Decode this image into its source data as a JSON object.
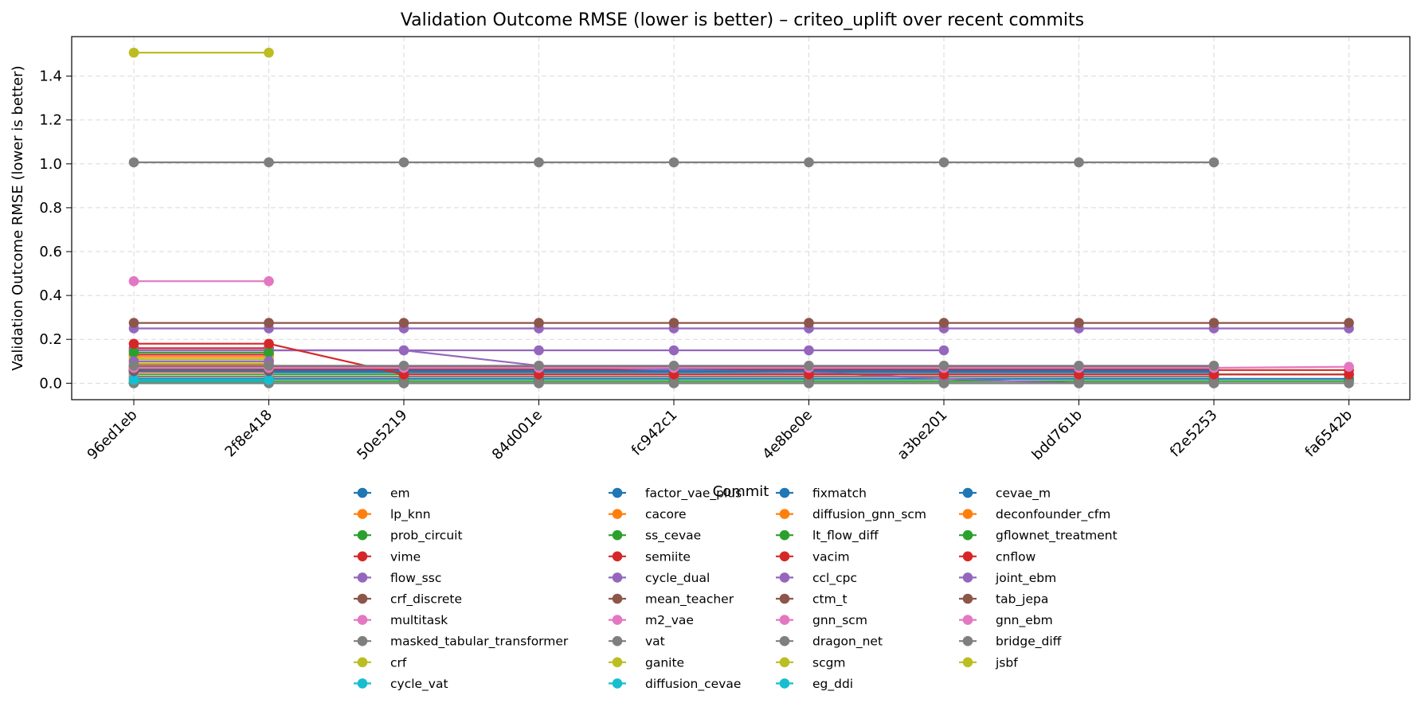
{
  "chart_data": {
    "type": "line",
    "title": "Validation Outcome RMSE (lower is better) – criteo_uplift over recent commits",
    "xlabel": "Commit",
    "ylabel": "Validation Outcome RMSE (lower is better)",
    "categories": [
      "96ed1eb",
      "2f8e418",
      "50e5219",
      "84d001e",
      "fc942c1",
      "4e8be0e",
      "a3be201",
      "bdd761b",
      "f2e5253",
      "fa6542b"
    ],
    "ylim": [
      -0.075,
      1.58
    ],
    "yticks": [
      "0.0",
      "0.2",
      "0.4",
      "0.6",
      "0.8",
      "1.0",
      "1.2",
      "1.4"
    ],
    "grid": true,
    "legend_position": "below",
    "palette": [
      "#1f77b4",
      "#ff7f0e",
      "#2ca02c",
      "#d62728",
      "#9467bd",
      "#8c564b",
      "#e377c2",
      "#7f7f7f",
      "#bcbd22",
      "#17becf"
    ],
    "series": [
      {
        "name": "em",
        "values": [
          0.05,
          0.05,
          0.05,
          0.05,
          0.05,
          0.05,
          0.05,
          0.05,
          0.05,
          null
        ]
      },
      {
        "name": "lp_knn",
        "values": [
          0.06,
          0.06,
          null,
          null,
          null,
          null,
          null,
          null,
          null,
          null
        ]
      },
      {
        "name": "prob_circuit",
        "values": [
          0.04,
          0.04,
          0.04,
          0.04,
          0.04,
          0.04,
          0.04,
          0.04,
          0.04,
          0.04
        ]
      },
      {
        "name": "vime",
        "values": [
          0.16,
          0.16,
          null,
          null,
          null,
          null,
          null,
          null,
          null,
          null
        ]
      },
      {
        "name": "flow_ssc",
        "values": [
          0.15,
          0.15,
          0.15,
          0.15,
          0.15,
          0.15,
          0.15,
          null,
          null,
          null
        ]
      },
      {
        "name": "crf_discrete",
        "values": [
          0.07,
          0.07,
          0.07,
          0.07,
          0.07,
          0.07,
          0.07,
          0.07,
          0.07,
          null
        ]
      },
      {
        "name": "multitask",
        "values": [
          0.465,
          0.465,
          null,
          null,
          null,
          null,
          null,
          null,
          null,
          null
        ]
      },
      {
        "name": "masked_tabular_transformer",
        "values": [
          1.007,
          1.007,
          1.007,
          1.007,
          1.007,
          1.007,
          1.007,
          1.007,
          1.007,
          null
        ]
      },
      {
        "name": "crf",
        "values": [
          0.09,
          0.09,
          null,
          null,
          null,
          null,
          null,
          null,
          null,
          null
        ]
      },
      {
        "name": "cycle_vat",
        "values": [
          0.1,
          0.1,
          null,
          null,
          null,
          null,
          null,
          null,
          null,
          null
        ]
      },
      {
        "name": "factor_vae_plus",
        "values": [
          0.02,
          0.02,
          0.02,
          0.02,
          0.02,
          0.02,
          0.02,
          0.02,
          0.02,
          0.02
        ]
      },
      {
        "name": "cacore",
        "values": [
          0.08,
          0.08,
          null,
          null,
          null,
          null,
          null,
          null,
          null,
          null
        ]
      },
      {
        "name": "ss_cevae",
        "values": [
          0.01,
          0.01,
          0.01,
          0.01,
          0.01,
          0.01,
          0.01,
          0.01,
          0.01,
          0.01
        ]
      },
      {
        "name": "semiite",
        "values": [
          0.13,
          0.13,
          null,
          null,
          null,
          null,
          null,
          null,
          null,
          null
        ]
      },
      {
        "name": "cycle_dual",
        "values": [
          0.25,
          0.25,
          0.25,
          0.25,
          0.25,
          0.25,
          0.25,
          0.25,
          0.25,
          0.25
        ]
      },
      {
        "name": "mean_teacher",
        "values": [
          0.275,
          0.275,
          0.275,
          0.275,
          0.275,
          0.275,
          0.275,
          0.275,
          0.275,
          0.275
        ]
      },
      {
        "name": "m2_vae",
        "values": [
          0.07,
          0.07,
          null,
          null,
          null,
          null,
          null,
          null,
          null,
          null
        ]
      },
      {
        "name": "vat",
        "values": [
          0.03,
          0.03,
          0.03,
          0.03,
          0.03,
          0.03,
          0.03,
          0.03,
          0.03,
          null
        ]
      },
      {
        "name": "ganite",
        "values": [
          0.045,
          0.045,
          null,
          null,
          null,
          null,
          null,
          null,
          null,
          null
        ]
      },
      {
        "name": "diffusion_cevae",
        "values": [
          0.005,
          0.005,
          null,
          null,
          null,
          null,
          null,
          null,
          null,
          null
        ]
      },
      {
        "name": "fixmatch",
        "values": [
          0.065,
          0.065,
          0.065,
          0.065,
          0.065,
          0.065,
          0.065,
          0.065,
          0.065,
          null
        ]
      },
      {
        "name": "diffusion_gnn_scm",
        "values": [
          0.12,
          0.12,
          null,
          null,
          null,
          null,
          null,
          null,
          null,
          null
        ]
      },
      {
        "name": "lt_flow_diff",
        "values": [
          0.0,
          0.0,
          0.0,
          0.0,
          0.0,
          0.0,
          0.0,
          0.0,
          0.0,
          null
        ]
      },
      {
        "name": "vacim",
        "values": [
          0.06,
          0.06,
          0.06,
          0.06,
          0.06,
          0.06,
          0.06,
          0.06,
          0.06,
          0.06
        ]
      },
      {
        "name": "ccl_cpc",
        "values": [
          0.15,
          0.15,
          0.15,
          0.08,
          0.06,
          0.05,
          0.02,
          0.0,
          0.0,
          null
        ]
      },
      {
        "name": "ctm_t",
        "values": [
          0.075,
          0.075,
          0.075,
          0.075,
          0.075,
          0.075,
          0.075,
          0.075,
          0.075,
          null
        ]
      },
      {
        "name": "gnn_scm",
        "values": [
          0.05,
          0.05,
          null,
          null,
          null,
          null,
          null,
          null,
          null,
          null
        ]
      },
      {
        "name": "dragon_net",
        "values": [
          0.0,
          0.0,
          0.0,
          0.0,
          0.0,
          0.0,
          0.0,
          0.0,
          0.0,
          0.0
        ]
      },
      {
        "name": "scgm",
        "values": [
          0.11,
          0.11,
          null,
          null,
          null,
          null,
          null,
          null,
          null,
          null
        ]
      },
      {
        "name": "eg_ddi",
        "values": [
          0.015,
          0.015,
          null,
          null,
          null,
          null,
          null,
          null,
          null,
          null
        ]
      },
      {
        "name": "cevae_m",
        "values": [
          0.055,
          0.055,
          0.055,
          0.055,
          0.055,
          0.055,
          0.055,
          0.055,
          0.055,
          null
        ]
      },
      {
        "name": "deconfounder_cfm",
        "values": [
          0.085,
          0.085,
          null,
          null,
          null,
          null,
          null,
          null,
          null,
          null
        ]
      },
      {
        "name": "gflownet_treatment",
        "values": [
          0.14,
          0.14,
          null,
          null,
          null,
          null,
          null,
          null,
          null,
          null
        ]
      },
      {
        "name": "cnflow",
        "values": [
          0.18,
          0.18,
          0.04,
          0.04,
          0.04,
          0.04,
          0.04,
          0.04,
          0.04,
          0.04
        ]
      },
      {
        "name": "joint_ebm",
        "values": [
          0.1,
          0.1,
          null,
          null,
          null,
          null,
          null,
          null,
          null,
          null
        ]
      },
      {
        "name": "tab_jepa",
        "values": [
          0.06,
          0.06,
          null,
          null,
          null,
          null,
          null,
          null,
          null,
          null
        ]
      },
      {
        "name": "gnn_ebm",
        "values": [
          0.07,
          0.07,
          0.07,
          0.07,
          0.07,
          0.07,
          0.07,
          0.07,
          0.07,
          0.075
        ]
      },
      {
        "name": "bridge_diff",
        "values": [
          0.08,
          0.08,
          0.08,
          0.08,
          0.08,
          0.08,
          0.08,
          0.08,
          0.08,
          null
        ]
      },
      {
        "name": "jsbf",
        "values": [
          1.507,
          1.507,
          null,
          null,
          null,
          null,
          null,
          null,
          null,
          null
        ]
      }
    ]
  }
}
